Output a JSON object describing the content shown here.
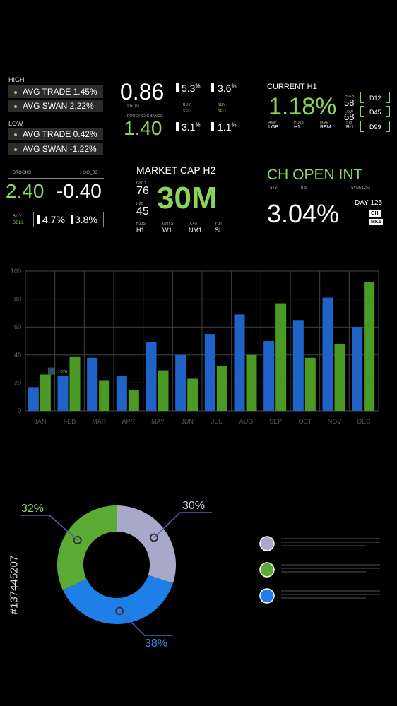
{
  "top": {
    "high": {
      "label": "HIGH",
      "items": [
        "AVG TRADE 1.45%",
        "AVG SWAN 2.22%"
      ]
    },
    "low": {
      "label": "LOW",
      "items": [
        "AVG TRADE 0.42%",
        "AVG SWAN -1.22%"
      ]
    },
    "mid": {
      "big1": "0.86",
      "sub1": "SG_03",
      "fx": "FOREX EXCHANGE",
      "big2": "1.40",
      "p1": "5.3",
      "p2": "3.6",
      "p3": "3.1",
      "p4": "1.1",
      "pct": "%",
      "buy": "BUY",
      "sell": "SELL",
      "q": "Q1",
      "q2": "Q2"
    },
    "current": {
      "title": "CURRENT H1",
      "value": "1.18%",
      "high": "HIGH",
      "high_v": "58",
      "low": "LOW",
      "low_v": "68",
      "codes": [
        "D12",
        "D45",
        "D99"
      ],
      "cols": [
        [
          "AMP",
          "LGB"
        ],
        [
          "PO13",
          "H1"
        ],
        [
          "MME",
          "REM"
        ],
        [
          "SIB",
          "B-1"
        ]
      ]
    }
  },
  "stocks": {
    "label": "STOCKS",
    "code": "SG_03",
    "v1": "2.40",
    "v2": "-0.40",
    "buy": "BUY",
    "sell": "SELL",
    "p1": "4.7%",
    "p2": "3.8%",
    "q1": "Q1",
    "q2": "Q2"
  },
  "market": {
    "title": "MARKET CAP H2",
    "gh12": "GH12",
    "n1": "76",
    "i20": "I-20",
    "n2": "45",
    "big": "30M",
    "cols": [
      [
        "HJJS",
        "H1"
      ],
      [
        "GHYS",
        "W1"
      ],
      [
        "C45",
        "NM1"
      ],
      [
        "YUT",
        "SL"
      ]
    ]
  },
  "chopen": {
    "title": "CH OPEN INT",
    "stv": "STV",
    "bbi": "BBI",
    "svde": "SVDE1253",
    "value": "3.04%",
    "day": "DAY 125",
    "ghi": "GHI",
    "mk1": "MK1"
  },
  "chart_data": [
    {
      "type": "bar",
      "categories": [
        "JAN",
        "FEB",
        "MAR",
        "APR",
        "MAY",
        "JUN",
        "JUL",
        "AUG",
        "SEP",
        "OCT",
        "NOV",
        "DEC"
      ],
      "series": [
        {
          "values": [
            17,
            25,
            38,
            25,
            49,
            40,
            55,
            69,
            50,
            65,
            81,
            60
          ]
        },
        {
          "values": [
            26,
            39,
            22,
            15,
            29,
            23,
            32,
            40,
            77,
            38,
            48,
            92
          ]
        }
      ],
      "ylim": [
        0,
        100
      ],
      "yticks": [
        0,
        20,
        40,
        60,
        80,
        100
      ],
      "annotation": "1076",
      "colors": [
        "#1f63c9",
        "#4a9a24"
      ],
      "grid": true
    },
    {
      "type": "pie",
      "slices": [
        {
          "label": "30%",
          "value": 30,
          "color": "#a8a8c8"
        },
        {
          "label": "38%",
          "value": 38,
          "color": "#1f7fe8"
        },
        {
          "label": "32%",
          "value": 32,
          "color": "#5aaa33"
        }
      ]
    }
  ],
  "legend_colors": [
    "#a8a8c8",
    "#5aaa33",
    "#1f7fe8"
  ],
  "watermark_id": "#137445207"
}
